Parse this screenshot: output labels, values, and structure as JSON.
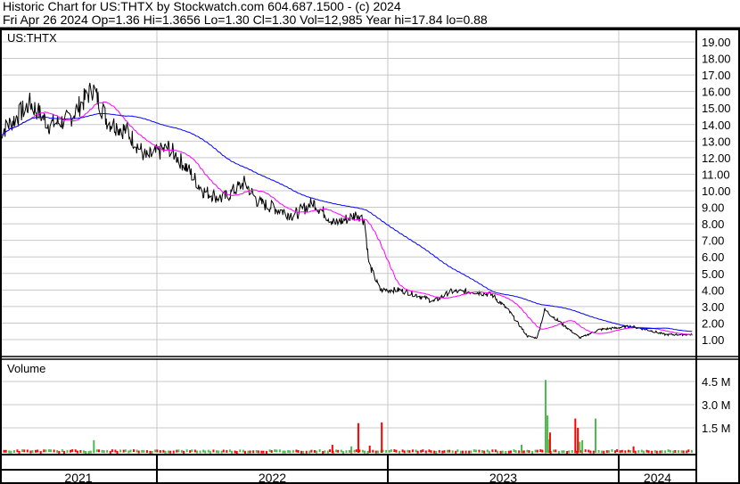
{
  "header": {
    "title": "Historic Chart for US:THTX by Stockwatch.com 604.687.1500 - (c) 2024",
    "quote": "Fri Apr 26 2024  Op=1.36  Hi=1.3656  Lo=1.30  Cl=1.30  Vol=12,985  Year hi=17.84  lo=0.88"
  },
  "chart_data": {
    "type": "line",
    "symbol": "US:THTX",
    "volume_label": "Volume",
    "price_ylim": [
      0,
      19.5
    ],
    "price_ticks": [
      "1.00",
      "2.00",
      "3.00",
      "4.00",
      "5.00",
      "6.00",
      "7.00",
      "8.00",
      "9.00",
      "10.00",
      "11.00",
      "12.00",
      "13.00",
      "14.00",
      "15.00",
      "16.00",
      "17.00",
      "18.00",
      "19.00"
    ],
    "volume_ticks": [
      {
        "label": "1.5 M",
        "value": 1500000
      },
      {
        "label": "3.0 M",
        "value": 3000000
      },
      {
        "label": "4.5 M",
        "value": 4500000
      }
    ],
    "x_labels": [
      "2021",
      "2022",
      "2023",
      "2024"
    ],
    "x_range": [
      "2021-04-28",
      "2024-04-26"
    ],
    "grid": true,
    "colors": {
      "price": "#000000",
      "ma_short": "#ff00ff",
      "ma_long": "#0000ff",
      "vol_up": "#4db84d",
      "vol_down": "#ff0000",
      "grid": "#c8c8c8"
    },
    "moving_averages": [
      {
        "color": "#ff00ff",
        "period_days": 50
      },
      {
        "color": "#0000ff",
        "period_days": 200
      }
    ],
    "price_series": [
      [
        "2021-04-28",
        13.5
      ],
      [
        "2021-05-20",
        14.3
      ],
      [
        "2021-06-15",
        15.3
      ],
      [
        "2021-07-15",
        14.0
      ],
      [
        "2021-08-15",
        14.3
      ],
      [
        "2021-09-22",
        16.2
      ],
      [
        "2021-10-15",
        14.2
      ],
      [
        "2021-11-15",
        13.6
      ],
      [
        "2021-12-15",
        12.0
      ],
      [
        "2022-01-20",
        12.6
      ],
      [
        "2022-02-15",
        11.5
      ],
      [
        "2022-03-15",
        10.0
      ],
      [
        "2022-04-15",
        9.5
      ],
      [
        "2022-05-20",
        10.5
      ],
      [
        "2022-06-10",
        9.3
      ],
      [
        "2022-07-10",
        8.9
      ],
      [
        "2022-08-05",
        8.5
      ],
      [
        "2022-09-05",
        9.3
      ],
      [
        "2022-10-10",
        8.0
      ],
      [
        "2022-11-15",
        8.6
      ],
      [
        "2022-11-25",
        8.2
      ],
      [
        "2022-12-02",
        5.6
      ],
      [
        "2022-12-20",
        4.0
      ],
      [
        "2023-01-20",
        4.0
      ],
      [
        "2023-02-15",
        3.7
      ],
      [
        "2023-03-15",
        3.3
      ],
      [
        "2023-04-10",
        3.9
      ],
      [
        "2023-05-15",
        3.9
      ],
      [
        "2023-06-15",
        3.7
      ],
      [
        "2023-07-10",
        2.8
      ],
      [
        "2023-08-10",
        1.2
      ],
      [
        "2023-08-25",
        1.1
      ],
      [
        "2023-09-06",
        2.8
      ],
      [
        "2023-10-05",
        1.9
      ],
      [
        "2023-11-01",
        1.1
      ],
      [
        "2023-12-01",
        1.6
      ],
      [
        "2024-01-20",
        1.8
      ],
      [
        "2024-02-15",
        1.6
      ],
      [
        "2024-03-15",
        1.3
      ],
      [
        "2024-04-26",
        1.3
      ]
    ],
    "volume_series": [
      {
        "date": "2021-09-22",
        "value": 700000,
        "dir": "up"
      },
      {
        "date": "2022-10-04",
        "value": 400000,
        "dir": "down"
      },
      {
        "date": "2022-11-03",
        "value": 300000,
        "dir": "up"
      },
      {
        "date": "2022-11-14",
        "value": 1800000,
        "dir": "down"
      },
      {
        "date": "2022-12-02",
        "value": 350000,
        "dir": "down"
      },
      {
        "date": "2022-12-21",
        "value": 1850000,
        "dir": "down"
      },
      {
        "date": "2023-07-30",
        "value": 400000,
        "dir": "up"
      },
      {
        "date": "2023-09-06",
        "value": 4600000,
        "dir": "up"
      },
      {
        "date": "2023-09-09",
        "value": 2300000,
        "dir": "up"
      },
      {
        "date": "2023-09-12",
        "value": 750000,
        "dir": "up"
      },
      {
        "date": "2023-09-13",
        "value": 1200000,
        "dir": "down"
      },
      {
        "date": "2023-10-23",
        "value": 2100000,
        "dir": "down"
      },
      {
        "date": "2023-10-27",
        "value": 1500000,
        "dir": "down"
      },
      {
        "date": "2023-10-30",
        "value": 600000,
        "dir": "up"
      },
      {
        "date": "2023-11-03",
        "value": 700000,
        "dir": "up"
      },
      {
        "date": "2023-11-24",
        "value": 2100000,
        "dir": "up"
      },
      {
        "date": "2024-01-23",
        "value": 300000,
        "dir": "down"
      }
    ]
  }
}
